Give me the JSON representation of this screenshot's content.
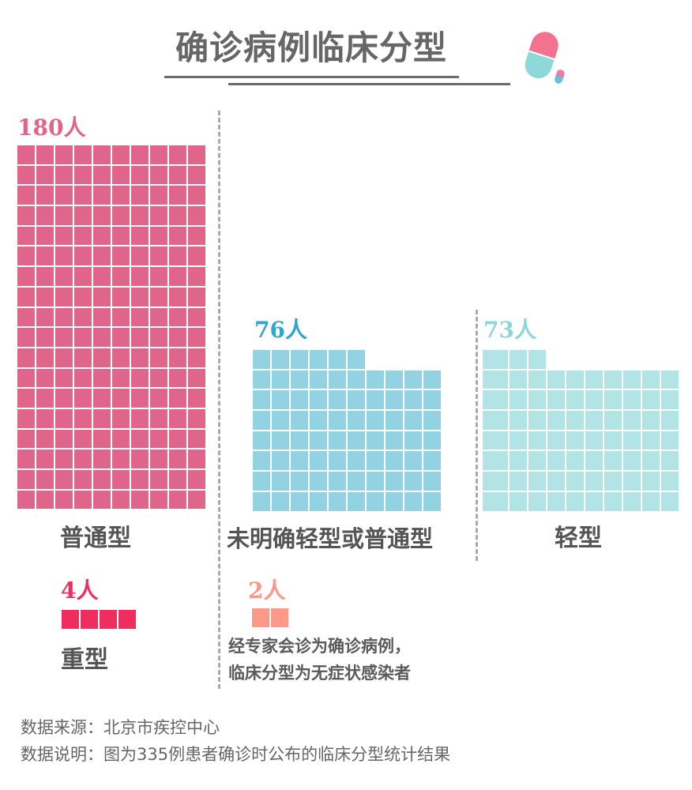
{
  "title": "确诊病例临床分型",
  "colors": {
    "common": "#e0658a",
    "undetermined": "#93d2e3",
    "mild": "#b2e3e5",
    "severe": "#f02d5f",
    "asymptomatic": "#fe9888",
    "text": "#555555"
  },
  "groups": {
    "common": {
      "count_label": "180人",
      "label": "普通型",
      "value": 180
    },
    "undetermined": {
      "count_label": "76人",
      "label": "未明确轻型或普通型",
      "value": 76
    },
    "mild": {
      "count_label": "73人",
      "label": "轻型",
      "value": 73
    },
    "severe": {
      "count_label": "4人",
      "label": "重型",
      "value": 4
    },
    "asymptomatic": {
      "count_label": "2人",
      "note_line1": "经专家会诊为确诊病例，",
      "note_line2": "临床分型为无症状感染者",
      "value": 2
    }
  },
  "footer": {
    "source": "数据来源：北京市疾控中心",
    "description": "数据说明：图为335例患者确诊时公布的临床分型统计结果"
  },
  "chart_data": {
    "type": "waffle",
    "title": "确诊病例临床分型",
    "unit": "人",
    "categories": [
      "普通型",
      "未明确轻型或普通型",
      "轻型",
      "重型",
      "无症状感染者"
    ],
    "values": [
      180,
      76,
      73,
      4,
      2
    ],
    "total": 335,
    "grid_columns": 10,
    "notes": [
      "经专家会诊为确诊病例，临床分型为无症状感染者"
    ],
    "source": "北京市疾控中心",
    "description": "图为335例患者确诊时公布的临床分型统计结果"
  }
}
